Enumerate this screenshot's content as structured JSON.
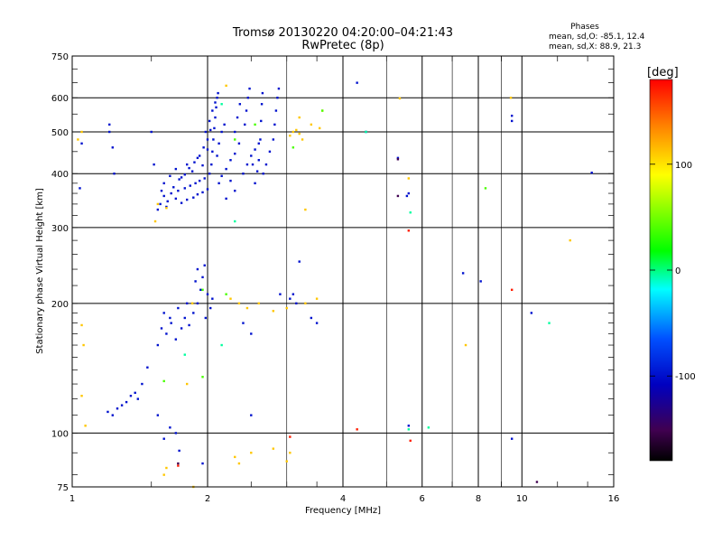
{
  "chart_data": {
    "type": "scatter",
    "title": "Tromsø 20130220 04:20:00–04:21:43",
    "subtitle": "RwPretec (8p)",
    "xlabel": "Frequency [MHz]",
    "ylabel": "Stationary phase Virtual Height [km]",
    "x_scale": "log",
    "y_scale": "log",
    "xlim": [
      1,
      16
    ],
    "ylim": [
      75,
      750
    ],
    "x_ticks": [
      1,
      2,
      4,
      6,
      8,
      10,
      16
    ],
    "x_tick_labels": [
      "1",
      "2",
      "4",
      "6",
      "8",
      "10",
      "16"
    ],
    "y_ticks": [
      75,
      100,
      200,
      300,
      400,
      500,
      600,
      750
    ],
    "y_tick_labels": [
      "75",
      "100",
      "200",
      "300",
      "400",
      "500",
      "600",
      "750"
    ],
    "grid": true,
    "annotation": {
      "heading": "Phases",
      "lines": [
        "mean, sd,O: -85.1, 12.4",
        "mean, sd,X:  88.9, 21.3"
      ]
    },
    "colorbar": {
      "label": "[deg]",
      "range": [
        -180,
        180
      ],
      "ticks": [
        100,
        0,
        -100
      ],
      "tick_labels": [
        "100",
        "0",
        "-100"
      ],
      "colors": [
        "#ff0000",
        "#ff8000",
        "#ffff00",
        "#00ff00",
        "#00ffff",
        "#0050ff",
        "#0000c0",
        "#400050",
        "#000000"
      ]
    },
    "series": [
      {
        "name": "",
        "color_value": -100,
        "points": [
          [
            1.57,
            340
          ],
          [
            1.6,
            355
          ],
          [
            1.63,
            345
          ],
          [
            1.66,
            360
          ],
          [
            1.7,
            350
          ],
          [
            1.72,
            365
          ],
          [
            1.75,
            342
          ],
          [
            1.78,
            370
          ],
          [
            1.8,
            348
          ],
          [
            1.83,
            375
          ],
          [
            1.86,
            352
          ],
          [
            1.88,
            380
          ],
          [
            1.9,
            358
          ],
          [
            1.92,
            385
          ],
          [
            1.95,
            362
          ],
          [
            1.97,
            390
          ],
          [
            2.0,
            368
          ],
          [
            2.02,
            400
          ],
          [
            2.04,
            420
          ],
          [
            2.05,
            450
          ],
          [
            2.06,
            480
          ],
          [
            2.07,
            510
          ],
          [
            2.08,
            540
          ],
          [
            2.09,
            570
          ],
          [
            2.1,
            600
          ],
          [
            2.11,
            615
          ],
          [
            1.6,
            380
          ],
          [
            1.65,
            395
          ],
          [
            1.7,
            410
          ],
          [
            1.75,
            392
          ],
          [
            1.8,
            420
          ],
          [
            1.85,
            405
          ],
          [
            1.9,
            435
          ],
          [
            1.95,
            418
          ],
          [
            2.0,
            455
          ],
          [
            1.98,
            500
          ],
          [
            2.02,
            530
          ],
          [
            2.05,
            560
          ],
          [
            2.08,
            585
          ],
          [
            1.68,
            372
          ],
          [
            1.73,
            388
          ],
          [
            1.78,
            398
          ],
          [
            1.82,
            412
          ],
          [
            1.87,
            425
          ],
          [
            1.92,
            440
          ],
          [
            1.96,
            460
          ],
          [
            2.0,
            480
          ],
          [
            2.03,
            505
          ],
          [
            2.12,
            380
          ],
          [
            2.15,
            395
          ],
          [
            2.2,
            410
          ],
          [
            2.25,
            430
          ],
          [
            2.3,
            445
          ],
          [
            2.35,
            470
          ],
          [
            2.2,
            350
          ],
          [
            2.3,
            365
          ],
          [
            2.25,
            385
          ],
          [
            2.4,
            400
          ],
          [
            2.45,
            420
          ],
          [
            2.5,
            440
          ],
          [
            2.55,
            455
          ],
          [
            2.6,
            470
          ],
          [
            2.42,
            520
          ],
          [
            2.44,
            560
          ],
          [
            2.46,
            600
          ],
          [
            2.48,
            630
          ],
          [
            2.52,
            420
          ],
          [
            2.55,
            380
          ],
          [
            2.58,
            405
          ],
          [
            2.6,
            430
          ],
          [
            2.62,
            480
          ],
          [
            2.63,
            530
          ],
          [
            2.64,
            580
          ],
          [
            2.65,
            615
          ],
          [
            2.66,
            400
          ],
          [
            2.7,
            420
          ],
          [
            2.75,
            450
          ],
          [
            2.8,
            480
          ],
          [
            2.82,
            520
          ],
          [
            2.84,
            560
          ],
          [
            2.86,
            600
          ],
          [
            2.88,
            630
          ],
          [
            2.1,
            440
          ],
          [
            2.12,
            470
          ],
          [
            2.15,
            500
          ],
          [
            2.18,
            520
          ],
          [
            2.3,
            500
          ],
          [
            2.33,
            540
          ],
          [
            2.36,
            580
          ],
          [
            1.55,
            330
          ],
          [
            1.62,
            335
          ],
          [
            1.58,
            365
          ],
          [
            1.05,
            470
          ],
          [
            1.21,
            520
          ],
          [
            1.21,
            500
          ],
          [
            1.23,
            460
          ],
          [
            1.5,
            500
          ],
          [
            1.52,
            420
          ],
          [
            1.24,
            400
          ],
          [
            1.04,
            370
          ],
          [
            5.3,
            435
          ],
          [
            5.55,
            355
          ],
          [
            9.5,
            545
          ],
          [
            9.5,
            530
          ],
          [
            4.3,
            650
          ],
          [
            4.5,
            500
          ],
          [
            3.2,
            250
          ],
          [
            5.6,
            360
          ],
          [
            14.3,
            402
          ],
          [
            1.55,
            160
          ],
          [
            1.58,
            175
          ],
          [
            1.62,
            170
          ],
          [
            1.66,
            180
          ],
          [
            1.7,
            165
          ],
          [
            1.75,
            175
          ],
          [
            1.78,
            185
          ],
          [
            1.82,
            178
          ],
          [
            1.86,
            190
          ],
          [
            1.9,
            200
          ],
          [
            1.93,
            215
          ],
          [
            1.95,
            230
          ],
          [
            1.97,
            245
          ],
          [
            2.0,
            210
          ],
          [
            2.03,
            195
          ],
          [
            1.88,
            225
          ],
          [
            1.9,
            240
          ],
          [
            1.98,
            185
          ],
          [
            2.05,
            205
          ],
          [
            1.6,
            190
          ],
          [
            1.65,
            185
          ],
          [
            1.72,
            195
          ],
          [
            1.8,
            200
          ],
          [
            2.4,
            180
          ],
          [
            2.5,
            170
          ],
          [
            3.05,
            205
          ],
          [
            3.1,
            210
          ],
          [
            3.15,
            200
          ],
          [
            2.9,
            210
          ],
          [
            3.4,
            185
          ],
          [
            3.5,
            180
          ],
          [
            1.2,
            112
          ],
          [
            1.23,
            110
          ],
          [
            1.26,
            114
          ],
          [
            1.29,
            116
          ],
          [
            1.32,
            118
          ],
          [
            1.35,
            122
          ],
          [
            1.38,
            124
          ],
          [
            1.4,
            120
          ],
          [
            1.43,
            130
          ],
          [
            1.47,
            142
          ],
          [
            1.6,
            97
          ],
          [
            1.65,
            103
          ],
          [
            1.7,
            100
          ],
          [
            1.73,
            91
          ],
          [
            1.95,
            85
          ],
          [
            1.55,
            110
          ],
          [
            2.5,
            110
          ],
          [
            7.4,
            235
          ],
          [
            10.5,
            190
          ],
          [
            5.6,
            104
          ],
          [
            9.5,
            97
          ],
          [
            8.1,
            225
          ]
        ]
      },
      {
        "name": "",
        "color_value": 110,
        "points": [
          [
            1.05,
            178
          ],
          [
            1.06,
            160
          ],
          [
            1.05,
            122
          ],
          [
            1.07,
            104
          ],
          [
            1.8,
            130
          ],
          [
            1.85,
            200
          ],
          [
            2.25,
            205
          ],
          [
            2.35,
            200
          ],
          [
            2.45,
            195
          ],
          [
            2.6,
            200
          ],
          [
            2.8,
            192
          ],
          [
            3.0,
            195
          ],
          [
            3.3,
            200
          ],
          [
            3.5,
            205
          ],
          [
            2.3,
            88
          ],
          [
            2.35,
            85
          ],
          [
            2.5,
            90
          ],
          [
            2.8,
            92
          ],
          [
            3.0,
            86
          ],
          [
            3.05,
            90
          ],
          [
            1.86,
            75
          ],
          [
            1.6,
            80
          ],
          [
            1.62,
            83
          ],
          [
            3.05,
            490
          ],
          [
            3.1,
            500
          ],
          [
            3.15,
            505
          ],
          [
            3.2,
            495
          ],
          [
            3.25,
            480
          ],
          [
            3.4,
            520
          ],
          [
            3.55,
            510
          ],
          [
            3.2,
            540
          ],
          [
            1.05,
            500
          ],
          [
            1.03,
            480
          ],
          [
            5.6,
            390
          ],
          [
            7.5,
            160
          ],
          [
            12.8,
            280
          ],
          [
            3.3,
            330
          ],
          [
            1.55,
            340
          ],
          [
            1.53,
            310
          ],
          [
            2.2,
            640
          ],
          [
            9.45,
            600
          ],
          [
            1.62,
            333
          ],
          [
            3.6,
            560
          ],
          [
            5.35,
            598
          ]
        ]
      },
      {
        "name": "",
        "color_value": 40,
        "points": [
          [
            2.3,
            480
          ],
          [
            2.55,
            520
          ],
          [
            3.1,
            460
          ],
          [
            8.3,
            370
          ],
          [
            3.6,
            560
          ],
          [
            1.95,
            215
          ],
          [
            2.2,
            210
          ],
          [
            1.95,
            135
          ],
          [
            1.6,
            132
          ]
        ]
      },
      {
        "name": "",
        "color_value": -5,
        "points": [
          [
            2.15,
            580
          ],
          [
            2.3,
            310
          ],
          [
            5.6,
            102
          ],
          [
            6.2,
            103
          ],
          [
            5.65,
            325
          ],
          [
            4.5,
            500
          ],
          [
            1.78,
            152
          ],
          [
            2.15,
            160
          ],
          [
            11.5,
            180
          ]
        ]
      },
      {
        "name": "",
        "color_value": 170,
        "points": [
          [
            5.6,
            295
          ],
          [
            5.65,
            96
          ],
          [
            9.5,
            215
          ],
          [
            4.3,
            102
          ],
          [
            1.72,
            84
          ],
          [
            3.05,
            98
          ]
        ]
      },
      {
        "name": "",
        "color_value": -150,
        "points": [
          [
            5.3,
            355
          ],
          [
            5.3,
            432
          ],
          [
            10.8,
            77
          ],
          [
            1.72,
            85
          ]
        ]
      }
    ]
  }
}
